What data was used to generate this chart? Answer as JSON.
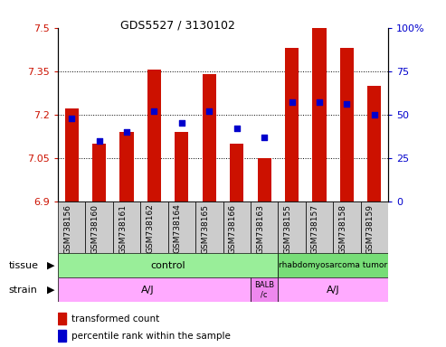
{
  "title": "GDS5527 / 3130102",
  "samples": [
    "GSM738156",
    "GSM738160",
    "GSM738161",
    "GSM738162",
    "GSM738164",
    "GSM738165",
    "GSM738166",
    "GSM738163",
    "GSM738155",
    "GSM738157",
    "GSM738158",
    "GSM738159"
  ],
  "transformed_count": [
    7.22,
    7.1,
    7.14,
    7.355,
    7.14,
    7.34,
    7.1,
    7.05,
    7.43,
    7.5,
    7.43,
    7.3
  ],
  "percentile_rank": [
    48,
    35,
    40,
    52,
    45,
    52,
    42,
    37,
    57,
    57,
    56,
    50
  ],
  "y_min": 6.9,
  "y_max": 7.5,
  "y_ticks": [
    6.9,
    7.05,
    7.2,
    7.35,
    7.5
  ],
  "y2_ticks": [
    0,
    25,
    50,
    75,
    100
  ],
  "bar_color": "#cc1100",
  "dot_color": "#0000cc",
  "legend_red": "transformed count",
  "legend_blue": "percentile rank within the sample",
  "tissue_label": "tissue",
  "strain_label": "strain",
  "ctrl_color": "#99ee99",
  "tumor_color": "#77dd77",
  "aj_color": "#ffaaff",
  "balb_color": "#ee88ee",
  "label_bg": "#cccccc"
}
